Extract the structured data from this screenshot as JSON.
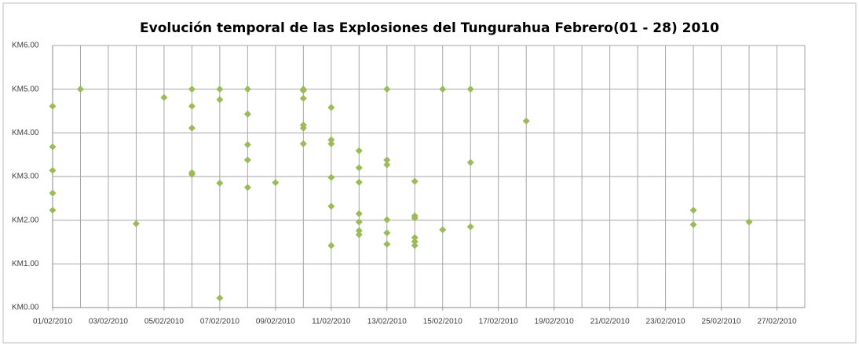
{
  "chart_data": {
    "type": "scatter",
    "title": "Evolución temporal de las Explosiones del Tungurahua Febrero(01 - 28) 2010",
    "series": [
      {
        "color": "#9bbb59",
        "x": [
          "01/02/2010",
          "01/02/2010",
          "01/02/2010",
          "01/02/2010",
          "01/02/2010",
          "02/02/2010",
          "04/02/2010",
          "05/02/2010",
          "06/02/2010",
          "06/02/2010",
          "06/02/2010",
          "06/02/2010",
          "06/02/2010",
          "07/02/2010",
          "07/02/2010",
          "07/02/2010",
          "07/02/2010",
          "08/02/2010",
          "08/02/2010",
          "08/02/2010",
          "08/02/2010",
          "08/02/2010",
          "09/02/2010",
          "10/02/2010",
          "10/02/2010",
          "10/02/2010",
          "10/02/2010",
          "10/02/2010",
          "10/02/2010",
          "11/02/2010",
          "11/02/2010",
          "11/02/2010",
          "11/02/2010",
          "11/02/2010",
          "11/02/2010",
          "12/02/2010",
          "12/02/2010",
          "12/02/2010",
          "12/02/2010",
          "12/02/2010",
          "12/02/2010",
          "12/02/2010",
          "13/02/2010",
          "13/02/2010",
          "13/02/2010",
          "13/02/2010",
          "13/02/2010",
          "13/02/2010",
          "14/02/2010",
          "14/02/2010",
          "14/02/2010",
          "14/02/2010",
          "14/02/2010",
          "14/02/2010",
          "15/02/2010",
          "15/02/2010",
          "16/02/2010",
          "16/02/2010",
          "16/02/2010",
          "18/02/2010",
          "24/02/2010",
          "24/02/2010",
          "26/02/2010"
        ],
        "values": [
          4.61,
          3.68,
          3.14,
          2.62,
          2.23,
          5.0,
          1.92,
          4.81,
          5.0,
          4.61,
          4.11,
          3.09,
          3.05,
          5.0,
          4.76,
          2.85,
          0.22,
          5.0,
          4.43,
          3.73,
          3.38,
          2.75,
          2.86,
          5.0,
          4.97,
          4.79,
          4.18,
          4.11,
          3.75,
          4.58,
          3.84,
          3.75,
          2.98,
          2.32,
          1.42,
          3.59,
          3.2,
          2.87,
          2.15,
          1.96,
          1.76,
          1.67,
          5.0,
          3.38,
          3.27,
          2.01,
          1.71,
          1.45,
          2.89,
          2.1,
          2.05,
          1.6,
          1.51,
          1.42,
          5.0,
          1.78,
          5.0,
          3.32,
          1.85,
          4.27,
          2.23,
          1.9,
          1.96
        ]
      }
    ],
    "xlim": [
      "01/02/2010",
      "28/02/2010"
    ],
    "xticks": [
      "01/02/2010",
      "03/02/2010",
      "05/02/2010",
      "07/02/2010",
      "09/02/2010",
      "11/02/2010",
      "13/02/2010",
      "15/02/2010",
      "17/02/2010",
      "19/02/2010",
      "21/02/2010",
      "23/02/2010",
      "25/02/2010",
      "27/02/2010"
    ],
    "ylim": [
      0,
      6
    ],
    "yticks": [
      {
        "value": 0,
        "label": "KM0.00"
      },
      {
        "value": 1,
        "label": "KM1.00"
      },
      {
        "value": 2,
        "label": "KM2.00"
      },
      {
        "value": 3,
        "label": "KM3.00"
      },
      {
        "value": 4,
        "label": "KM4.00"
      },
      {
        "value": 5,
        "label": "KM5.00"
      },
      {
        "value": 6,
        "label": "KM6.00"
      }
    ],
    "grid": true,
    "daily_grid": true
  }
}
